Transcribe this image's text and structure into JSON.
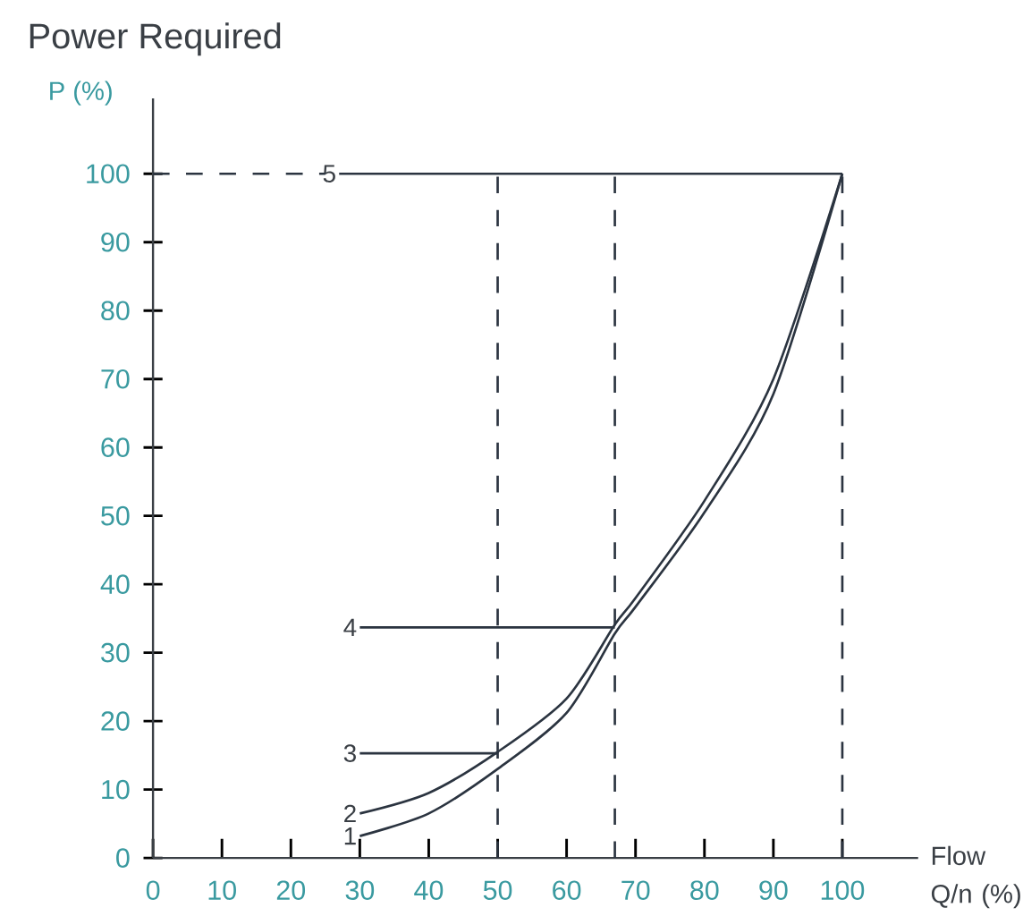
{
  "chart_data": {
    "type": "line",
    "title": "Power Required",
    "ylabel": "P (%)",
    "xlabel": "Flow Q/n (%)",
    "xlim": [
      0,
      111
    ],
    "ylim": [
      0,
      111
    ],
    "xticks": [
      0,
      10,
      20,
      30,
      40,
      50,
      60,
      70,
      80,
      90,
      100
    ],
    "yticks": [
      0,
      10,
      20,
      30,
      40,
      50,
      60,
      70,
      80,
      90,
      100
    ],
    "grid": false,
    "marker": "none",
    "series": [
      {
        "name": "1",
        "color": "#2b3440",
        "line_style": "solid",
        "x": [
          30,
          40,
          50,
          60,
          67,
          70,
          80,
          90,
          100
        ],
        "values": [
          3.2,
          6.5,
          13,
          21.2,
          32.8,
          36.7,
          50.5,
          67.8,
          100
        ]
      },
      {
        "name": "2",
        "color": "#2b3440",
        "line_style": "solid",
        "x": [
          30,
          40,
          50,
          60,
          67,
          70,
          80,
          90,
          100
        ],
        "values": [
          6.5,
          9.5,
          15.5,
          23.3,
          34.1,
          38,
          52.2,
          70,
          100
        ]
      },
      {
        "name": "3",
        "color": "#2b3440",
        "line_style": "solid",
        "x": [
          30,
          50
        ],
        "values": [
          15.3,
          15.3
        ]
      },
      {
        "name": "4",
        "color": "#2b3440",
        "line_style": "solid",
        "x": [
          30,
          67
        ],
        "values": [
          33.7,
          33.7
        ]
      },
      {
        "name": "5",
        "color": "#2b3440",
        "line_style": "solid",
        "x": [
          27,
          100
        ],
        "values": [
          100,
          100
        ]
      },
      {
        "color": "#2b3440",
        "line_style": "dashed",
        "x": [
          0,
          25
        ],
        "values": [
          100,
          100
        ]
      },
      {
        "color": "#2b3440",
        "line_style": "dashed",
        "x": [
          50,
          50
        ],
        "values": [
          0,
          100
        ]
      },
      {
        "color": "#2b3440",
        "line_style": "dashed",
        "x": [
          67,
          67
        ],
        "values": [
          0,
          100
        ]
      },
      {
        "color": "#2b3440",
        "line_style": "dashed",
        "x": [
          100,
          100
        ],
        "values": [
          0,
          100
        ]
      }
    ]
  }
}
